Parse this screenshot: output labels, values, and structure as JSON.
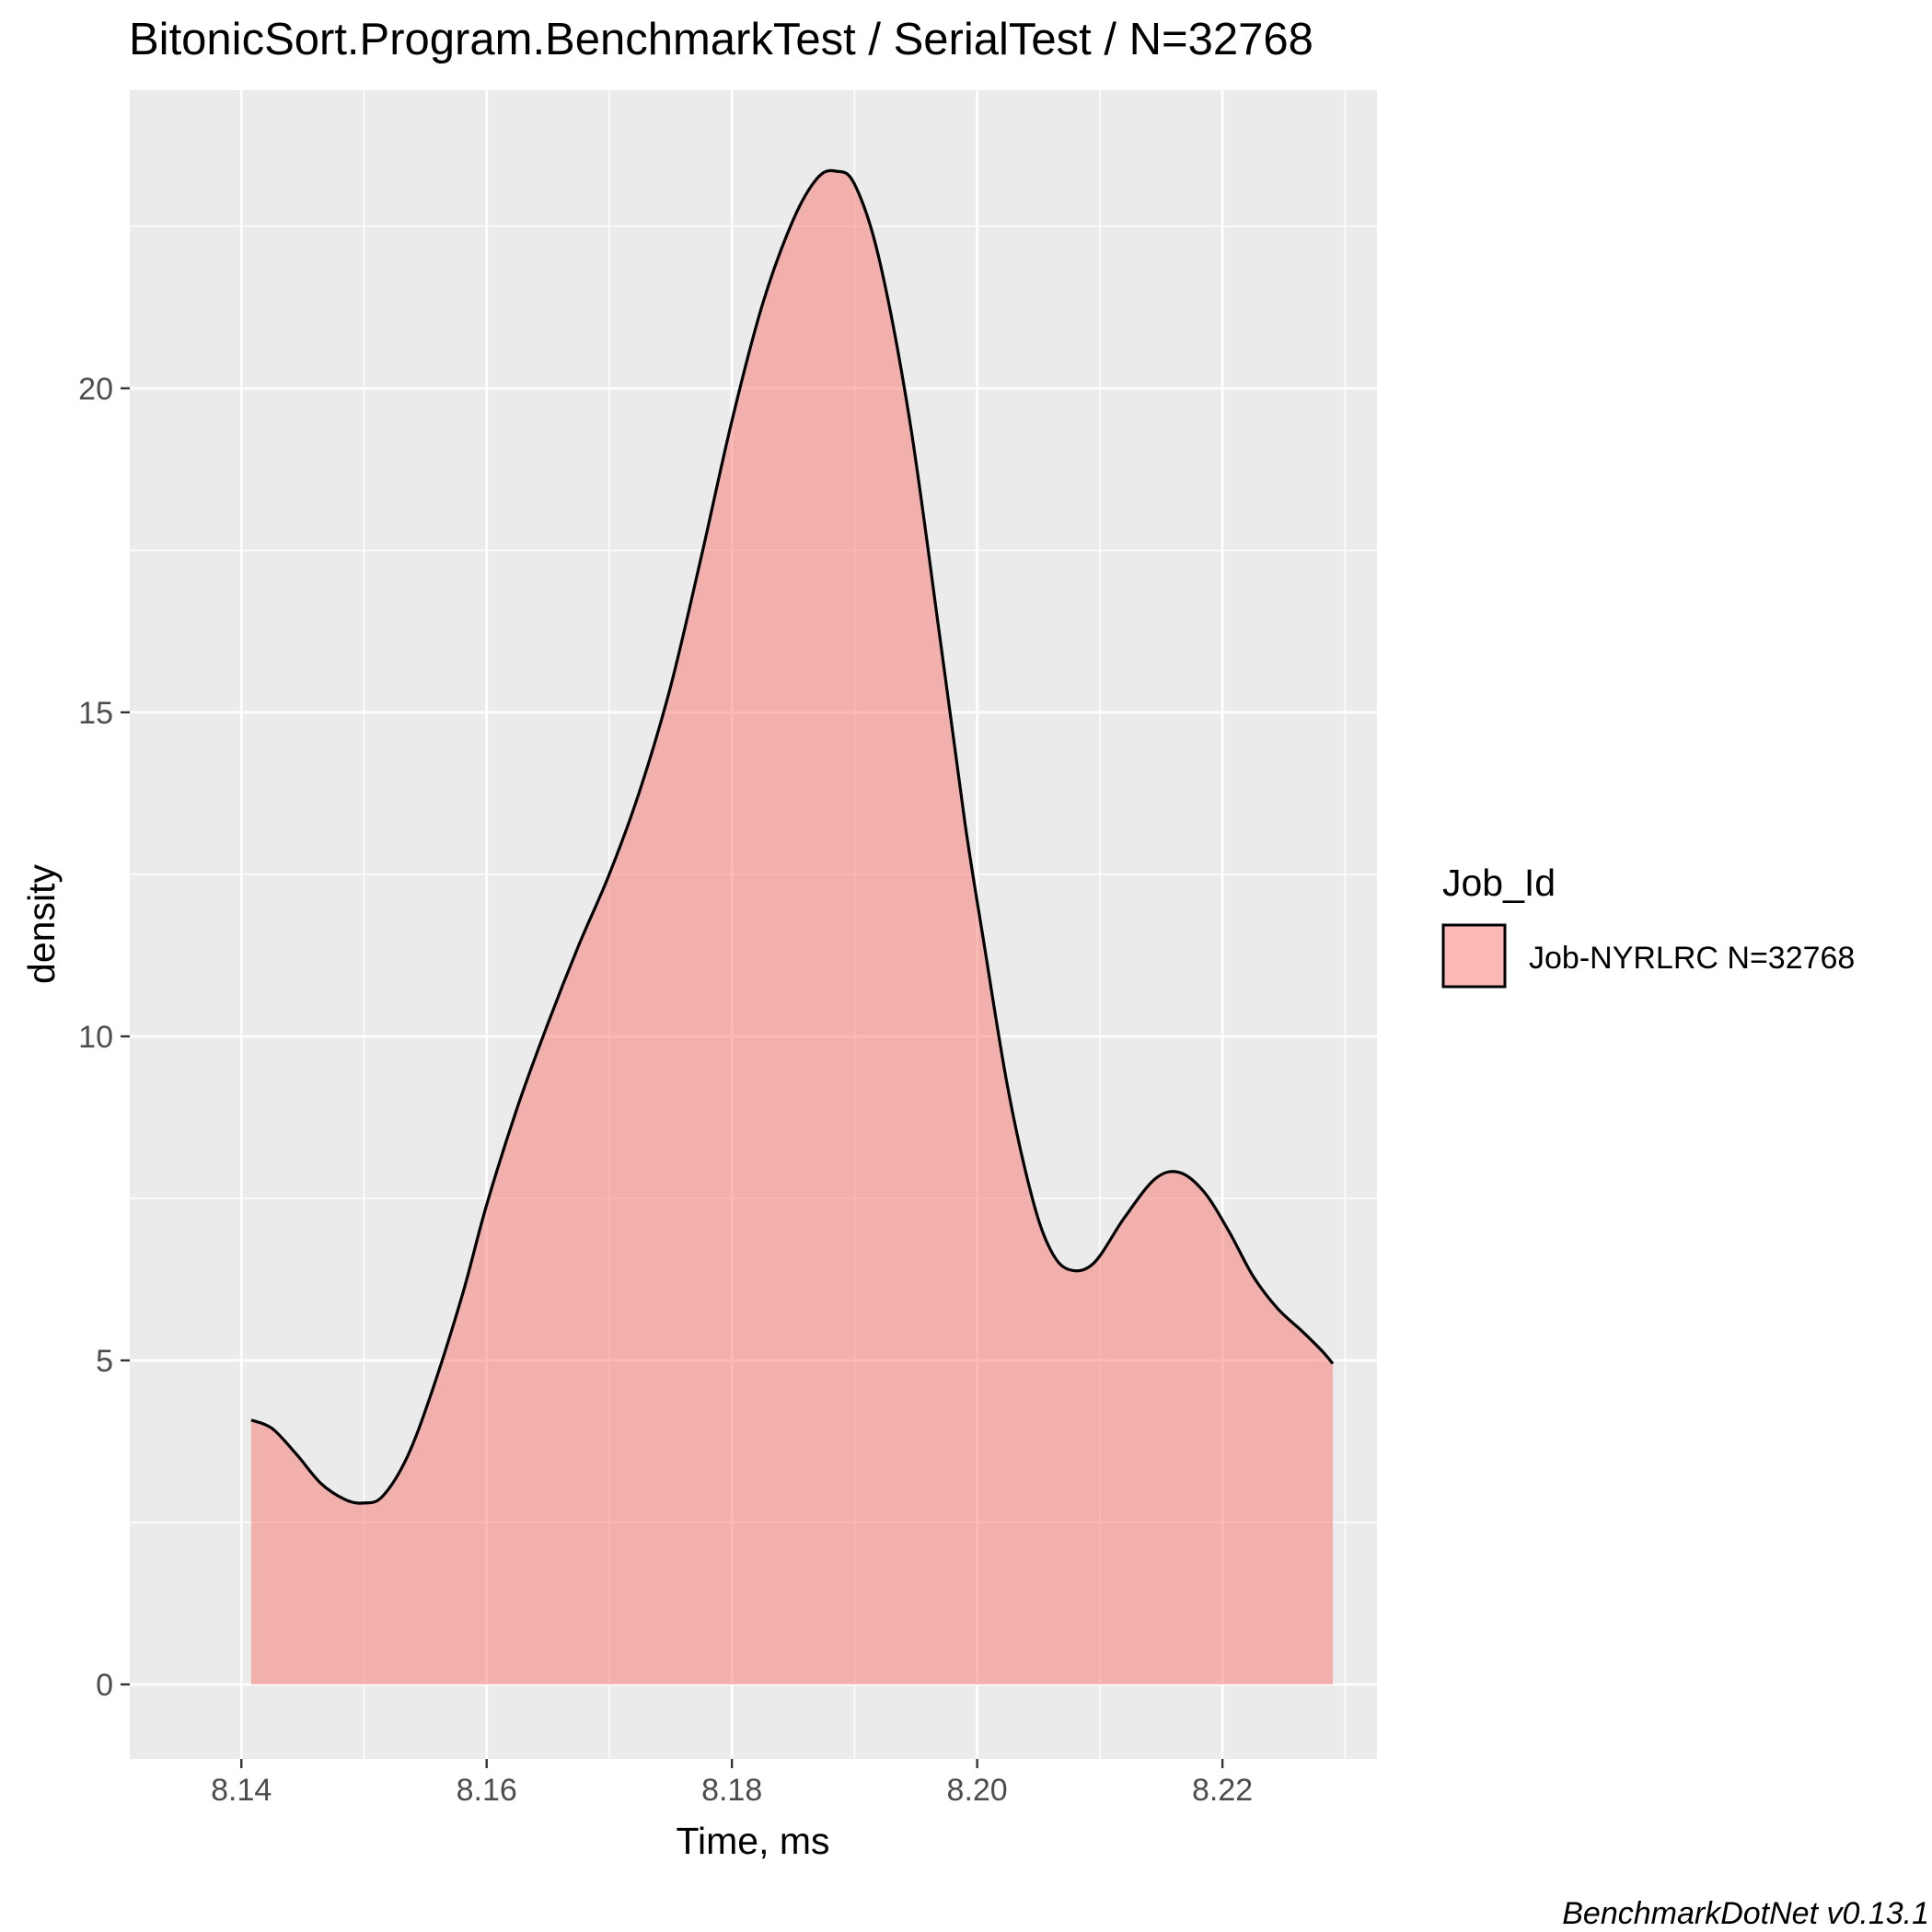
{
  "chart_data": {
    "type": "area",
    "title": "BitonicSort.Program.BenchmarkTest / SerialTest / N=32768",
    "xlabel": "Time, ms",
    "ylabel": "density",
    "xlim": [
      8.1309,
      8.2326
    ],
    "ylim": [
      -1.15,
      24.6
    ],
    "x_ticks": [
      8.14,
      8.16,
      8.18,
      8.2,
      8.22
    ],
    "x_tick_labels": [
      "8.14",
      "8.16",
      "8.18",
      "8.20",
      "8.22"
    ],
    "y_ticks": [
      0,
      5,
      10,
      15,
      20
    ],
    "y_tick_labels": [
      "0",
      "5",
      "10",
      "15",
      "20"
    ],
    "grid": true,
    "legend": {
      "title": "Job_Id",
      "position": "right",
      "entries": [
        {
          "label": "Job-NYRLRC N=32768",
          "fill": "#f8766d"
        }
      ]
    },
    "caption": "BenchmarkDotNet v0.13.1",
    "series": [
      {
        "name": "Job-NYRLRC N=32768",
        "fill": "#f8766d",
        "fill_opacity": 0.5,
        "line": "#000000",
        "x": [
          8.1408,
          8.1425,
          8.1445,
          8.1465,
          8.1485,
          8.15,
          8.1515,
          8.1535,
          8.1555,
          8.158,
          8.16,
          8.1625,
          8.165,
          8.1675,
          8.17,
          8.1725,
          8.175,
          8.1775,
          8.18,
          8.1825,
          8.185,
          8.187,
          8.1885,
          8.19,
          8.192,
          8.1945,
          8.197,
          8.199,
          8.2005,
          8.2025,
          8.2045,
          8.206,
          8.2075,
          8.2095,
          8.212,
          8.2145,
          8.2165,
          8.2185,
          8.2205,
          8.2225,
          8.2245,
          8.2265,
          8.2281,
          8.229
        ],
        "y": [
          4.08,
          3.95,
          3.55,
          3.1,
          2.85,
          2.8,
          2.9,
          3.5,
          4.5,
          6.0,
          7.4,
          8.9,
          10.2,
          11.4,
          12.5,
          13.8,
          15.4,
          17.4,
          19.5,
          21.3,
          22.6,
          23.25,
          23.35,
          23.15,
          22.0,
          19.5,
          16.1,
          13.3,
          11.5,
          9.2,
          7.5,
          6.7,
          6.4,
          6.5,
          7.2,
          7.8,
          7.9,
          7.6,
          7.0,
          6.3,
          5.8,
          5.45,
          5.15,
          4.95
        ]
      }
    ]
  }
}
